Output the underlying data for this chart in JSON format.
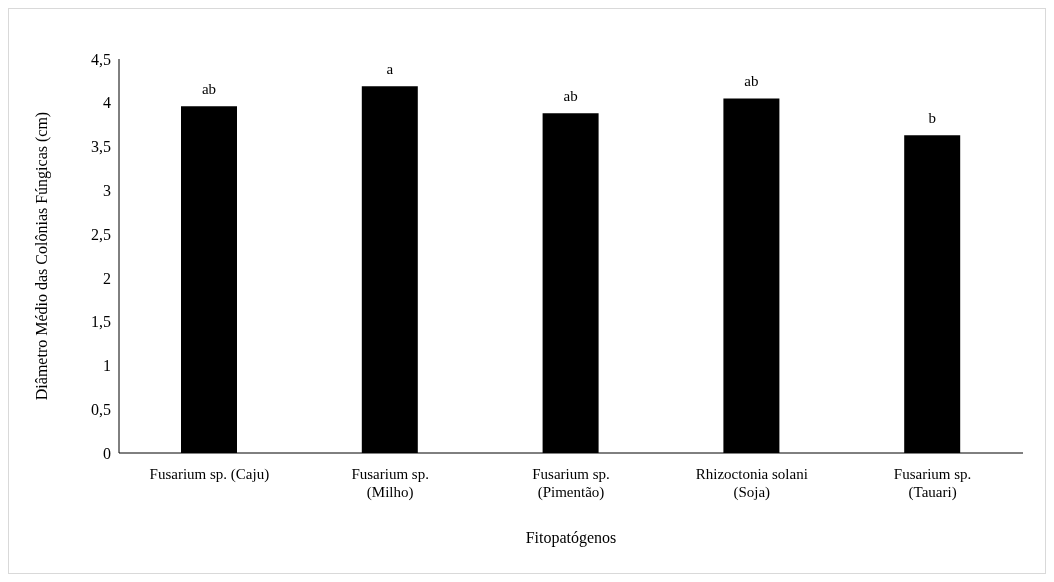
{
  "chart_data": {
    "type": "bar",
    "xlabel": "Fitopatógenos",
    "ylabel": "Diâmetro  Médio das Colônias Fúngicas (cm)",
    "categories": [
      "Fusarium sp. (Caju)",
      "Fusarium sp.\n(Milho)",
      "Fusarium sp.\n(Pimentão)",
      "Rhizoctonia solani\n(Soja)",
      "Fusarium sp.\n(Tauari)"
    ],
    "values": [
      3.96,
      4.19,
      3.88,
      4.05,
      3.63
    ],
    "color": "#000000",
    "ylim": [
      0,
      4.5
    ],
    "yticks": [
      {
        "value": 0,
        "label": "0"
      },
      {
        "value": 0.5,
        "label": "0,5"
      },
      {
        "value": 1,
        "label": "1"
      },
      {
        "value": 1.5,
        "label": "1,5"
      },
      {
        "value": 2,
        "label": "2"
      },
      {
        "value": 2.5,
        "label": "2,5"
      },
      {
        "value": 3,
        "label": "3"
      },
      {
        "value": 3.5,
        "label": "3,5"
      },
      {
        "value": 4,
        "label": "4"
      },
      {
        "value": 4.5,
        "label": "4,5"
      }
    ],
    "grid": false,
    "annotations": [
      {
        "text": "ab",
        "x": "Fusarium sp. (Caju)",
        "y": 3.96
      },
      {
        "text": "a",
        "x": "Fusarium sp.\n(Milho)",
        "y": 4.19
      },
      {
        "text": "ab",
        "x": "Fusarium sp.\n(Pimentão)",
        "y": 3.88
      },
      {
        "text": "ab",
        "x": "Rhizoctonia solani\n(Soja)",
        "y": 4.05
      },
      {
        "text": "b",
        "x": "Fusarium sp.\n(Tauari)",
        "y": 3.63
      }
    ]
  }
}
